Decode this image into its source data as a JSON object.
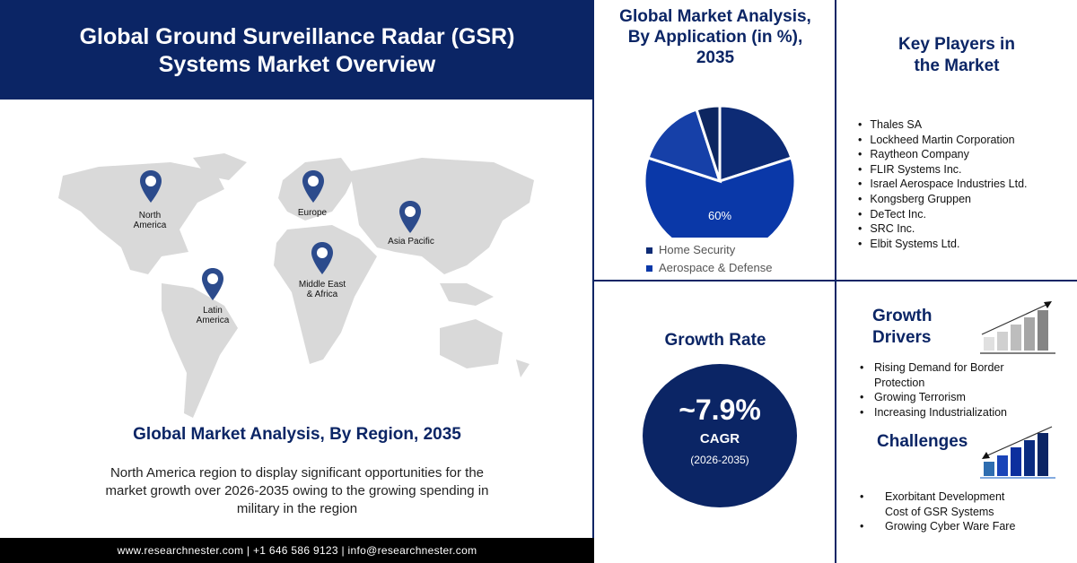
{
  "header": {
    "title_line1": "Global Ground Surveillance Radar (GSR)",
    "title_line2": "Systems Market Overview"
  },
  "map": {
    "regions": [
      {
        "name": "North\nAmerica"
      },
      {
        "name": "Europe"
      },
      {
        "name": "Asia Pacific"
      },
      {
        "name": "Middle East\n& Africa"
      },
      {
        "name": "Latin\nAmerica"
      }
    ],
    "pin_color": "#2c4b8c",
    "land_color": "#d9d9d9"
  },
  "region_section": {
    "title": "Global Market Analysis, By Region, 2035",
    "description": "North America region to display significant opportunities for the market growth over 2026-2035 owing to the growing spending in military in the region"
  },
  "footer": {
    "text": "www.researchnester.com | +1 646 586 9123 | info@researchnester.com"
  },
  "application": {
    "title_line1": "Global Market Analysis,",
    "title_line2": "By Application (in %),",
    "title_line3": "2035"
  },
  "chart_data": {
    "type": "pie",
    "title": "Global Market Analysis, By Application (in %), 2035",
    "slices": [
      {
        "label": "Home Security",
        "value": 20,
        "color": "#0d2b75",
        "show_label": false
      },
      {
        "label": "Aerospace & Defense",
        "value": 60,
        "color": "#0a38a8",
        "data_label": "60%"
      },
      {
        "label": "",
        "value": 15,
        "color": "#1640a8",
        "show_label": false
      },
      {
        "label": "",
        "value": 5,
        "color": "#0d2660",
        "show_label": false
      }
    ],
    "legend": [
      "Home Security",
      "Aerospace & Defense"
    ],
    "legend_placement": "bottom"
  },
  "key_players": {
    "title_line1": "Key Players in",
    "title_line2": "the Market",
    "items": [
      "Thales SA",
      "Lockheed Martin Corporation",
      "Raytheon Company",
      "FLIR Systems Inc.",
      "Israel Aerospace Industries Ltd.",
      "Kongsberg Gruppen",
      "DeTect Inc.",
      "SRC Inc.",
      "Elbit Systems Ltd."
    ]
  },
  "growth_rate": {
    "title": "Growth Rate",
    "value": "~7.9%",
    "label": "CAGR",
    "period": "(2026-2035)",
    "circle_color": "#0b2565"
  },
  "growth_drivers": {
    "title_line1": "Growth",
    "title_line2": "Drivers",
    "items": [
      "Rising Demand for Border Protection",
      "Growing Terrorism",
      "Increasing Industrialization"
    ]
  },
  "challenges": {
    "title": "Challenges",
    "items": [
      "Exorbitant Development Cost of GSR Systems",
      "Growing Cyber Ware Fare"
    ]
  }
}
